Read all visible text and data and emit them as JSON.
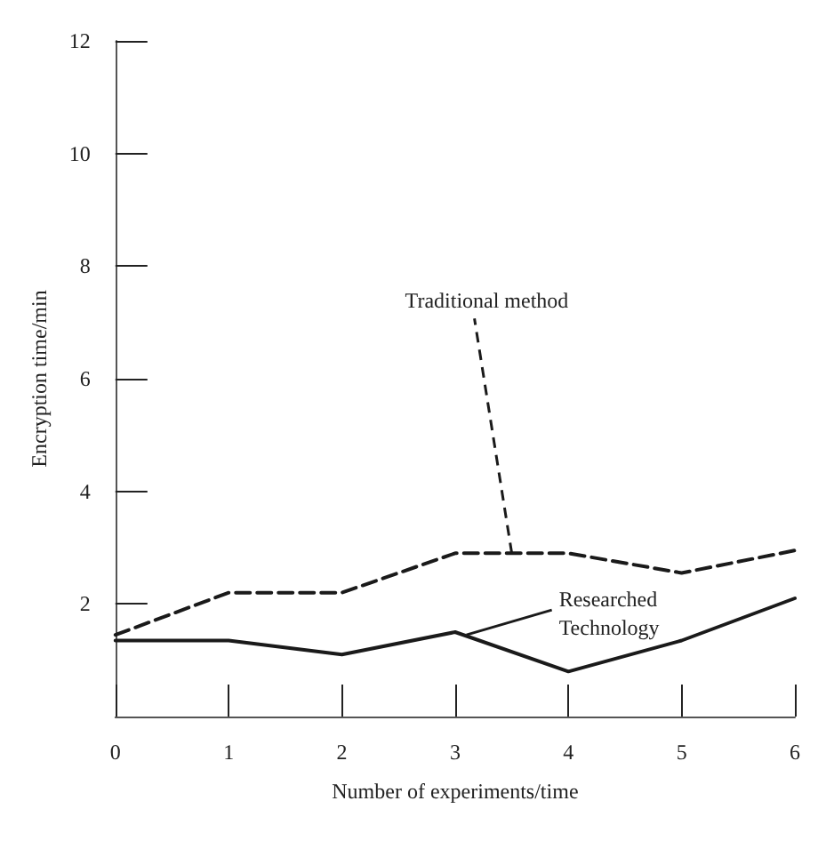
{
  "chart_data": {
    "type": "line",
    "xlabel": "Number of experiments/time",
    "ylabel": "Encryption time/min",
    "x": [
      0,
      1,
      2,
      3,
      4,
      5,
      6
    ],
    "series": [
      {
        "color": "#1a1a1a",
        "line_style": "dashed",
        "values": [
          1.45,
          2.2,
          2.2,
          2.9,
          2.9,
          2.55,
          2.95
        ]
      },
      {
        "color": "#1a1a1a",
        "line_style": "solid",
        "values": [
          1.35,
          1.35,
          1.1,
          1.5,
          0.8,
          1.35,
          2.1
        ]
      }
    ],
    "annotations": [
      {
        "text": "Traditional method",
        "x": 3.5,
        "y": 2.9
      },
      {
        "text": "Researched Technology",
        "x": 3.1,
        "y": 1.45
      }
    ],
    "xlim": [
      0,
      6
    ],
    "xticks": [
      0,
      1,
      2,
      3,
      4,
      5,
      6
    ],
    "ylim": [
      0,
      12
    ],
    "yticks": [
      2,
      4,
      6,
      8,
      10,
      12
    ],
    "grid": false,
    "marker": "none"
  }
}
